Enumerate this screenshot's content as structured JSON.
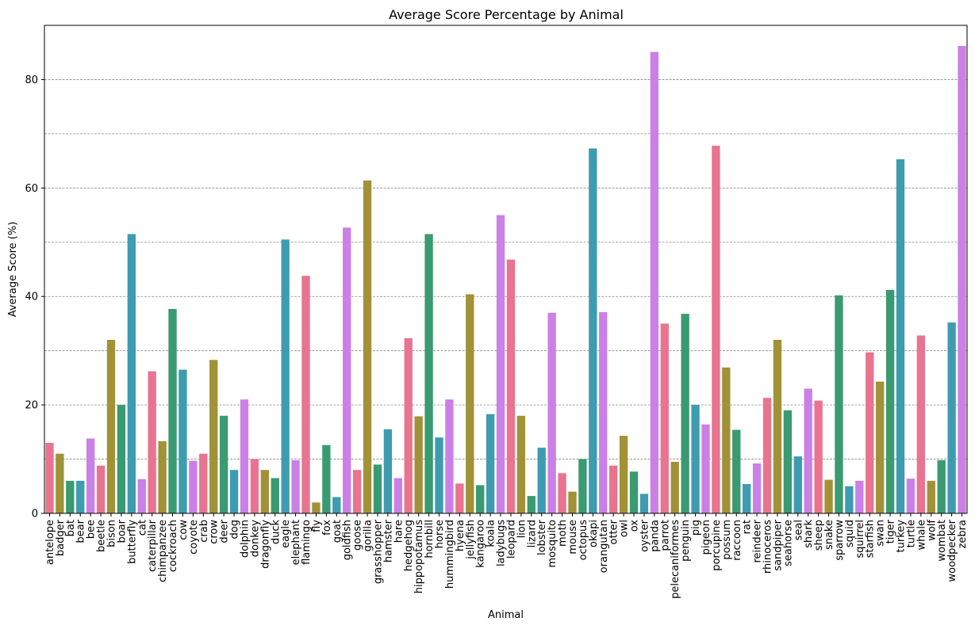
{
  "chart_data": {
    "type": "bar",
    "title": "Average Score Percentage by Animal",
    "xlabel": "Animal",
    "ylabel": "Average Score (%)",
    "ylim": [
      0,
      90
    ],
    "yticks": [
      0,
      20,
      40,
      60,
      80
    ],
    "grid": {
      "axis": "y",
      "style": "dashed",
      "every": 10
    },
    "palette": [
      "#e8748f",
      "#a29237",
      "#3a9a71",
      "#3e9cb0",
      "#cb80e6"
    ],
    "categories": [
      "antelope",
      "badger",
      "bat",
      "bear",
      "bee",
      "beetle",
      "bison",
      "boar",
      "butterfly",
      "cat",
      "caterpillar",
      "chimpanzee",
      "cockroach",
      "cow",
      "coyote",
      "crab",
      "crow",
      "deer",
      "dog",
      "dolphin",
      "donkey",
      "dragonfly",
      "duck",
      "eagle",
      "elephant",
      "flamingo",
      "fly",
      "fox",
      "goat",
      "goldfish",
      "goose",
      "gorilla",
      "grasshopper",
      "hamster",
      "hare",
      "hedgehog",
      "hippopotamus",
      "hornbill",
      "horse",
      "hummingbird",
      "hyena",
      "jellyfish",
      "kangaroo",
      "koala",
      "ladybugs",
      "leopard",
      "lion",
      "lizard",
      "lobster",
      "mosquito",
      "moth",
      "mouse",
      "octopus",
      "okapi",
      "orangutan",
      "otter",
      "owl",
      "ox",
      "oyster",
      "panda",
      "parrot",
      "pelecaniformes",
      "penguin",
      "pig",
      "pigeon",
      "porcupine",
      "possum",
      "raccoon",
      "rat",
      "reindeer",
      "rhinoceros",
      "sandpiper",
      "seahorse",
      "seal",
      "shark",
      "sheep",
      "snake",
      "sparrow",
      "squid",
      "squirrel",
      "starfish",
      "swan",
      "tiger",
      "turkey",
      "turtle",
      "whale",
      "wolf",
      "wombat",
      "woodpecker",
      "zebra"
    ],
    "values": [
      13.0,
      11.0,
      6.0,
      6.0,
      13.8,
      8.8,
      32.0,
      20.0,
      51.5,
      6.3,
      26.2,
      13.3,
      37.7,
      26.5,
      9.7,
      11.0,
      28.3,
      18.0,
      8.0,
      21.0,
      10.0,
      8.0,
      6.5,
      50.5,
      9.8,
      43.8,
      2.0,
      12.6,
      3.0,
      52.7,
      8.0,
      61.4,
      9.0,
      15.5,
      6.5,
      32.3,
      17.9,
      51.5,
      14.0,
      21.0,
      5.5,
      40.4,
      5.2,
      18.3,
      55.0,
      46.8,
      18.0,
      3.2,
      12.1,
      37.0,
      7.4,
      4.0,
      10.0,
      67.3,
      37.1,
      8.8,
      14.3,
      7.7,
      3.6,
      85.1,
      35.0,
      9.5,
      36.8,
      20.0,
      16.4,
      67.8,
      26.9,
      15.4,
      5.4,
      9.2,
      21.3,
      32.0,
      19.0,
      10.5,
      23.0,
      20.8,
      6.2,
      40.2,
      5.0,
      6.0,
      29.7,
      24.3,
      41.2,
      65.3,
      6.4,
      32.8,
      6.0,
      9.8,
      35.2,
      86.2
    ]
  }
}
